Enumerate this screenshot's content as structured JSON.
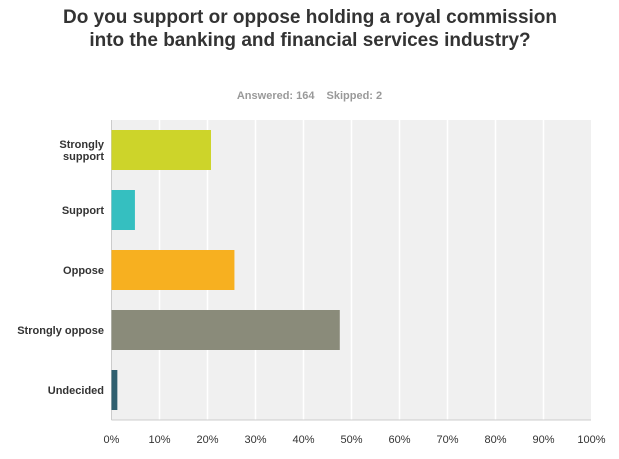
{
  "chart_data": {
    "type": "bar",
    "orientation": "horizontal",
    "title": "Do you support or oppose holding a royal commission into the banking and financial services industry?",
    "answered_label": "Answered: 164",
    "skipped_label": "Skipped: 2",
    "categories": [
      "Strongly support",
      "Support",
      "Oppose",
      "Strongly oppose",
      "Undecided"
    ],
    "values": [
      20.73,
      4.88,
      25.61,
      47.56,
      1.22
    ],
    "colors": [
      "#cdd42a",
      "#35bfc0",
      "#f7b020",
      "#8a8b7a",
      "#2f5f6f"
    ],
    "xlim": [
      0,
      100
    ],
    "xticks": [
      "0%",
      "10%",
      "20%",
      "30%",
      "40%",
      "50%",
      "60%",
      "70%",
      "80%",
      "90%",
      "100%"
    ],
    "grid": true,
    "xlabel": "",
    "ylabel": ""
  }
}
